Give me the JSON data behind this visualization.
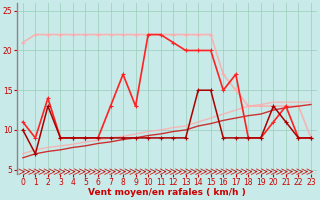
{
  "bg_color": "#c8eae8",
  "grid_color": "#99ccbb",
  "xlabel": "Vent moyen/en rafales ( km/h )",
  "xlabel_color": "#cc0000",
  "xlim": [
    -0.5,
    23.5
  ],
  "ylim": [
    4.5,
    26
  ],
  "yticks": [
    5,
    10,
    15,
    20,
    25
  ],
  "xticks": [
    0,
    1,
    2,
    3,
    4,
    5,
    6,
    7,
    8,
    9,
    10,
    11,
    12,
    13,
    14,
    15,
    16,
    17,
    18,
    19,
    20,
    21,
    22,
    23
  ],
  "lines": [
    {
      "x": [
        0,
        1,
        2,
        3,
        4,
        5,
        6,
        7,
        8,
        9,
        10,
        11,
        12,
        13,
        14,
        15,
        16,
        17,
        18,
        19,
        20,
        21,
        22,
        23
      ],
      "y": [
        21,
        22,
        22,
        22,
        22,
        22,
        22,
        22,
        22,
        22,
        22,
        22,
        22,
        22,
        22,
        22,
        17,
        15,
        13,
        13,
        13,
        13,
        13,
        9
      ],
      "color": "#ffaaaa",
      "lw": 1.2,
      "marker": "+",
      "ms": 3.5,
      "alpha": 0.85,
      "zorder": 2
    },
    {
      "x": [
        0,
        1,
        2,
        3,
        4,
        5,
        6,
        7,
        8,
        9,
        10,
        11,
        12,
        13,
        14,
        15,
        16,
        17,
        18,
        19,
        20,
        21,
        22,
        23
      ],
      "y": [
        11,
        9,
        14,
        9,
        9,
        9,
        9,
        13,
        17,
        13,
        22,
        22,
        21,
        20,
        20,
        20,
        15,
        17,
        9,
        9,
        11,
        13,
        9,
        9
      ],
      "color": "#ff2222",
      "lw": 1.2,
      "marker": "+",
      "ms": 3.5,
      "alpha": 1.0,
      "zorder": 3
    },
    {
      "x": [
        0,
        1,
        2,
        3,
        4,
        5,
        6,
        7,
        8,
        9,
        10,
        11,
        12,
        13,
        14,
        15,
        16,
        17,
        18,
        19,
        20,
        21,
        22,
        23
      ],
      "y": [
        10,
        7,
        13,
        9,
        9,
        9,
        9,
        9,
        9,
        9,
        9,
        9,
        9,
        9,
        15,
        15,
        9,
        9,
        9,
        9,
        13,
        11,
        9,
        9
      ],
      "color": "#aa0000",
      "lw": 1.1,
      "marker": "+",
      "ms": 3.5,
      "alpha": 1.0,
      "zorder": 3
    },
    {
      "x": [
        0,
        1,
        2,
        3,
        4,
        5,
        6,
        7,
        8,
        9,
        10,
        11,
        12,
        13,
        14,
        15,
        16,
        17,
        18,
        19,
        20,
        21,
        22,
        23
      ],
      "y": [
        7.0,
        7.5,
        7.8,
        8.0,
        8.2,
        8.5,
        8.7,
        9.0,
        9.2,
        9.5,
        9.8,
        10.0,
        10.3,
        10.5,
        11.0,
        11.5,
        12.0,
        12.5,
        13.0,
        13.2,
        13.5,
        13.5,
        13.5,
        13.5
      ],
      "color": "#ffaaaa",
      "lw": 1.0,
      "marker": null,
      "ms": 0,
      "alpha": 0.8,
      "zorder": 2
    },
    {
      "x": [
        0,
        1,
        2,
        3,
        4,
        5,
        6,
        7,
        8,
        9,
        10,
        11,
        12,
        13,
        14,
        15,
        16,
        17,
        18,
        19,
        20,
        21,
        22,
        23
      ],
      "y": [
        6.5,
        7.0,
        7.3,
        7.5,
        7.8,
        8.0,
        8.3,
        8.5,
        8.8,
        9.0,
        9.3,
        9.5,
        9.8,
        10.0,
        10.5,
        10.8,
        11.2,
        11.5,
        11.8,
        12.0,
        12.5,
        12.8,
        13.0,
        13.2
      ],
      "color": "#cc1111",
      "lw": 1.0,
      "marker": null,
      "ms": 0,
      "alpha": 0.85,
      "zorder": 2
    }
  ],
  "spine_color": "#888888",
  "tick_color": "#cc0000",
  "tick_labelsize": 5.5
}
